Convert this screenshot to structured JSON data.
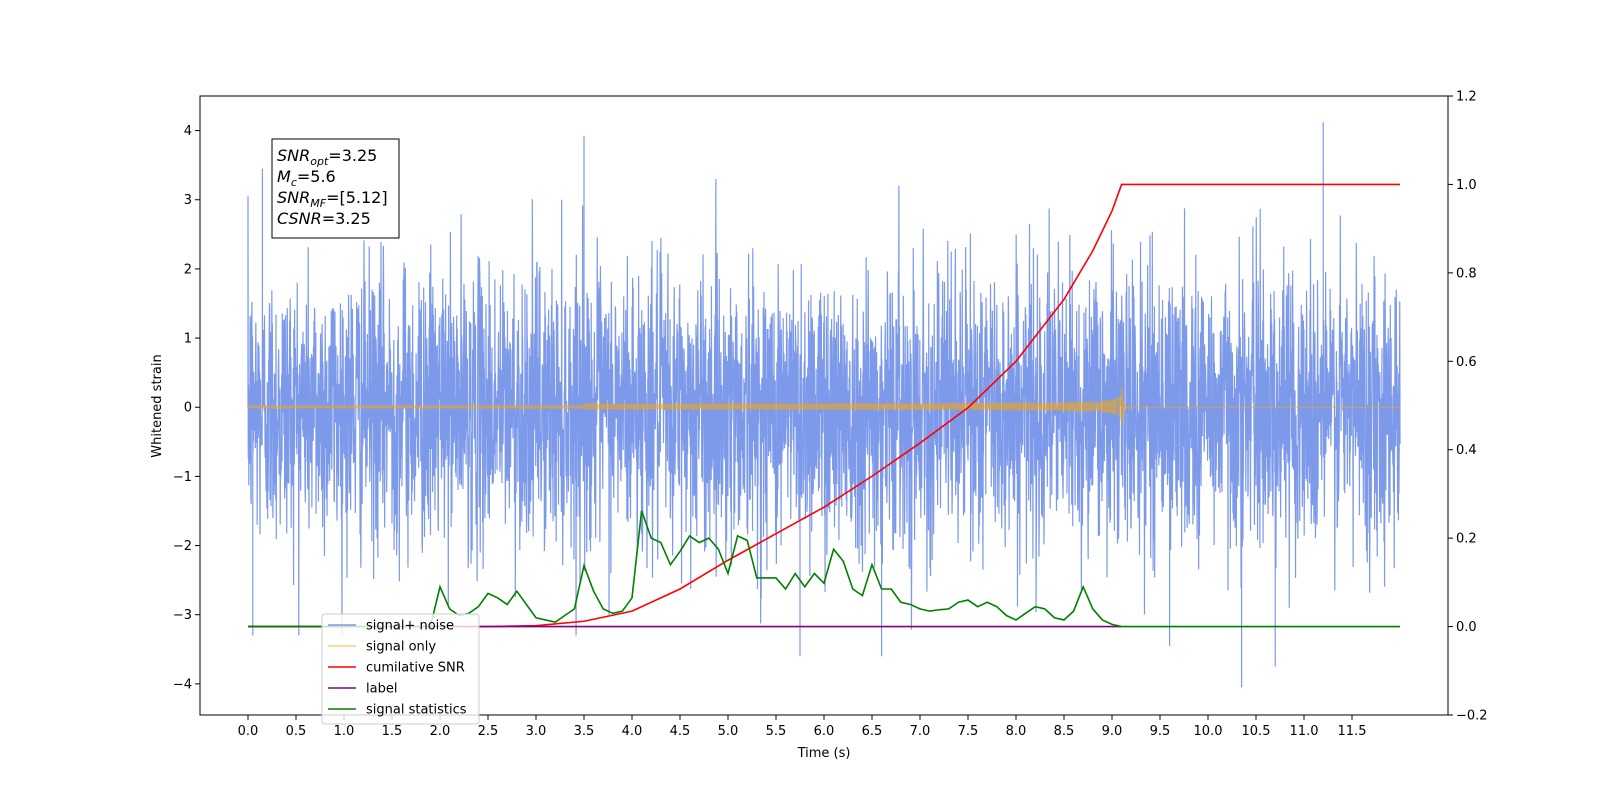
{
  "chart_data": {
    "type": "line",
    "xlabel": "Time (s)",
    "ylabel": "Whitened strain",
    "xlim": [
      -0.5,
      12.5
    ],
    "ylim_left": [
      -4.45,
      4.5
    ],
    "ylim_right": [
      -0.2,
      1.2
    ],
    "x_ticks": [
      0.0,
      0.5,
      1.0,
      1.5,
      2.0,
      2.5,
      3.0,
      3.5,
      4.0,
      4.5,
      5.0,
      5.5,
      6.0,
      6.5,
      7.0,
      7.5,
      8.0,
      8.5,
      9.0,
      9.5,
      10.0,
      10.5,
      11.0,
      11.5
    ],
    "x_tick_labels": [
      "0.0",
      "0.5",
      "1.0",
      "1.5",
      "2.0",
      "2.5",
      "3.0",
      "3.5",
      "4.0",
      "4.5",
      "5.0",
      "5.5",
      "6.0",
      "6.5",
      "7.0",
      "7.5",
      "8.0",
      "8.5",
      "9.0",
      "9.5",
      "10.0",
      "10.5",
      "11.0",
      "11.5"
    ],
    "y_ticks_left": [
      4,
      3,
      2,
      1,
      0,
      -1,
      -2,
      -3,
      -4
    ],
    "y_tick_labels_left": [
      "4",
      "3",
      "2",
      "1",
      "0",
      "−1",
      "−2",
      "−3",
      "−4"
    ],
    "y_ticks_right": [
      1.2,
      1.0,
      0.8,
      0.6,
      0.4,
      0.2,
      0.0,
      -0.2
    ],
    "y_tick_labels_right": [
      "1.2",
      "1.0",
      "0.8",
      "0.6",
      "0.4",
      "0.2",
      "0.0",
      "−0.2"
    ],
    "annotation": {
      "lines": [
        {
          "sym": "SNR",
          "sub": "opt",
          "rest": "=3.25"
        },
        {
          "sym": "M",
          "sub": "c",
          "rest": "=5.6"
        },
        {
          "sym": "SNR",
          "sub": "MF",
          "rest": "=[5.12]"
        },
        {
          "sym": "CSNR",
          "sub": "",
          "rest": "=3.25"
        }
      ]
    },
    "legend": {
      "placement": "lower-left",
      "entries": [
        "signal+ noise",
        "signal only",
        "cumilative SNR",
        "label",
        "signal statistics"
      ]
    },
    "series": [
      {
        "name": "signal+ noise",
        "axis": "left",
        "color": "#6688e6",
        "generator": "noise",
        "x_range": [
          0.0,
          12.0
        ],
        "std": 1.0,
        "peaks": [
          {
            "x": 0.0,
            "y": 3.05
          },
          {
            "x": 0.15,
            "y": 3.45
          },
          {
            "x": 3.5,
            "y": 3.92
          },
          {
            "x": 11.2,
            "y": 4.12
          },
          {
            "x": 10.35,
            "y": -4.05
          },
          {
            "x": 6.6,
            "y": -3.6
          },
          {
            "x": 5.75,
            "y": -3.6
          },
          {
            "x": 10.7,
            "y": -3.75
          },
          {
            "x": 9.6,
            "y": -3.45
          },
          {
            "x": 0.05,
            "y": -3.3
          }
        ]
      },
      {
        "name": "signal only",
        "axis": "left",
        "color": "#ffa500",
        "generator": "chirp",
        "x_range": [
          0.0,
          12.0
        ],
        "merger_time": 9.1,
        "peak_amplitude": 0.3
      },
      {
        "name": "cumilative SNR",
        "axis": "right",
        "color": "#ff0000",
        "x": [
          0.0,
          2.0,
          2.5,
          3.0,
          3.5,
          4.0,
          4.5,
          5.0,
          5.5,
          6.0,
          6.5,
          7.0,
          7.5,
          8.0,
          8.5,
          8.8,
          9.0,
          9.05,
          9.1,
          12.0
        ],
        "values": [
          0.0,
          0.0,
          0.0,
          0.002,
          0.012,
          0.035,
          0.085,
          0.15,
          0.21,
          0.27,
          0.34,
          0.415,
          0.495,
          0.6,
          0.74,
          0.85,
          0.94,
          0.97,
          1.0,
          1.0
        ]
      },
      {
        "name": "label",
        "axis": "right",
        "color": "#800080",
        "x": [
          0.0,
          9.1
        ],
        "values": [
          0.0,
          0.0
        ]
      },
      {
        "name": "signal statistics",
        "axis": "right",
        "color": "#008000",
        "x": [
          0.0,
          1.9,
          2.0,
          2.1,
          2.2,
          2.3,
          2.4,
          2.5,
          2.6,
          2.7,
          2.8,
          3.0,
          3.2,
          3.3,
          3.4,
          3.5,
          3.6,
          3.7,
          3.8,
          3.9,
          4.0,
          4.1,
          4.2,
          4.3,
          4.4,
          4.5,
          4.6,
          4.7,
          4.8,
          4.9,
          5.0,
          5.1,
          5.2,
          5.3,
          5.4,
          5.5,
          5.6,
          5.7,
          5.8,
          5.9,
          6.0,
          6.1,
          6.2,
          6.3,
          6.4,
          6.5,
          6.6,
          6.7,
          6.8,
          6.9,
          7.0,
          7.1,
          7.2,
          7.3,
          7.4,
          7.5,
          7.6,
          7.7,
          7.8,
          7.9,
          8.0,
          8.1,
          8.2,
          8.3,
          8.4,
          8.5,
          8.6,
          8.7,
          8.8,
          8.9,
          9.0,
          9.1,
          11.0,
          12.0
        ],
        "values": [
          0.0,
          0.0,
          0.09,
          0.04,
          0.025,
          0.03,
          0.045,
          0.075,
          0.065,
          0.05,
          0.08,
          0.02,
          0.01,
          0.025,
          0.04,
          0.138,
          0.08,
          0.04,
          0.03,
          0.035,
          0.065,
          0.262,
          0.2,
          0.19,
          0.14,
          0.17,
          0.205,
          0.19,
          0.2,
          0.175,
          0.12,
          0.205,
          0.195,
          0.11,
          0.11,
          0.11,
          0.085,
          0.12,
          0.09,
          0.12,
          0.098,
          0.175,
          0.148,
          0.085,
          0.07,
          0.14,
          0.085,
          0.085,
          0.055,
          0.05,
          0.04,
          0.035,
          0.038,
          0.04,
          0.055,
          0.06,
          0.045,
          0.055,
          0.045,
          0.025,
          0.015,
          0.03,
          0.045,
          0.04,
          0.02,
          0.015,
          0.035,
          0.09,
          0.04,
          0.015,
          0.005,
          0.0,
          0.0,
          0.0
        ]
      }
    ]
  }
}
